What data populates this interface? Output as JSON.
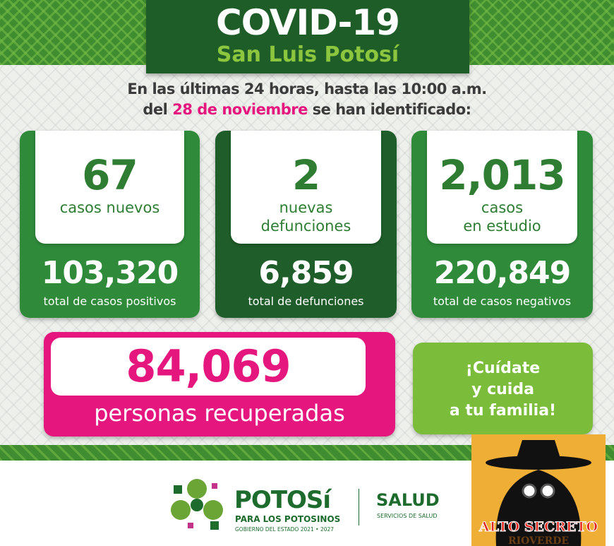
{
  "header": {
    "title": "COVID-19",
    "subtitle": "San Luis Potosí"
  },
  "intro": {
    "line1": "En las últimas 24 horas, hasta las 10:00 a.m.",
    "line2_pre": "del ",
    "line2_date": "28 de noviembre",
    "line2_post": " se han identificado:"
  },
  "cards": [
    {
      "value": "67",
      "label1": "casos nuevos",
      "label2": "",
      "total": "103,320",
      "total_label": "total de casos positivos"
    },
    {
      "value": "2",
      "label1": "nuevas",
      "label2": "defunciones",
      "total": "6,859",
      "total_label": "total de defunciones"
    },
    {
      "value": "2,013",
      "label1": "casos",
      "label2": "en estudio",
      "total": "220,849",
      "total_label": "total de casos negativos"
    }
  ],
  "recovered": {
    "value": "84,069",
    "label": "personas recuperadas"
  },
  "message": {
    "line1": "¡Cuídate",
    "line2": "y cuida",
    "line3": "a tu familia!"
  },
  "footer": {
    "brand": "POTOSí",
    "brand_sub": "PARA LOS POTOSINOS",
    "gov": "GOBIERNO DEL ESTADO 2021 • 2027",
    "salud": "SALUD",
    "salud_sub": "SERVICIOS DE SALUD"
  },
  "watermark": {
    "text": "ALTO SECRETO",
    "sub": "RIOVERDE"
  },
  "colors": {
    "green": "#2f8a3a",
    "dark_green": "#1e5d27",
    "pink": "#e5177e",
    "lime": "#7bbd3a"
  }
}
